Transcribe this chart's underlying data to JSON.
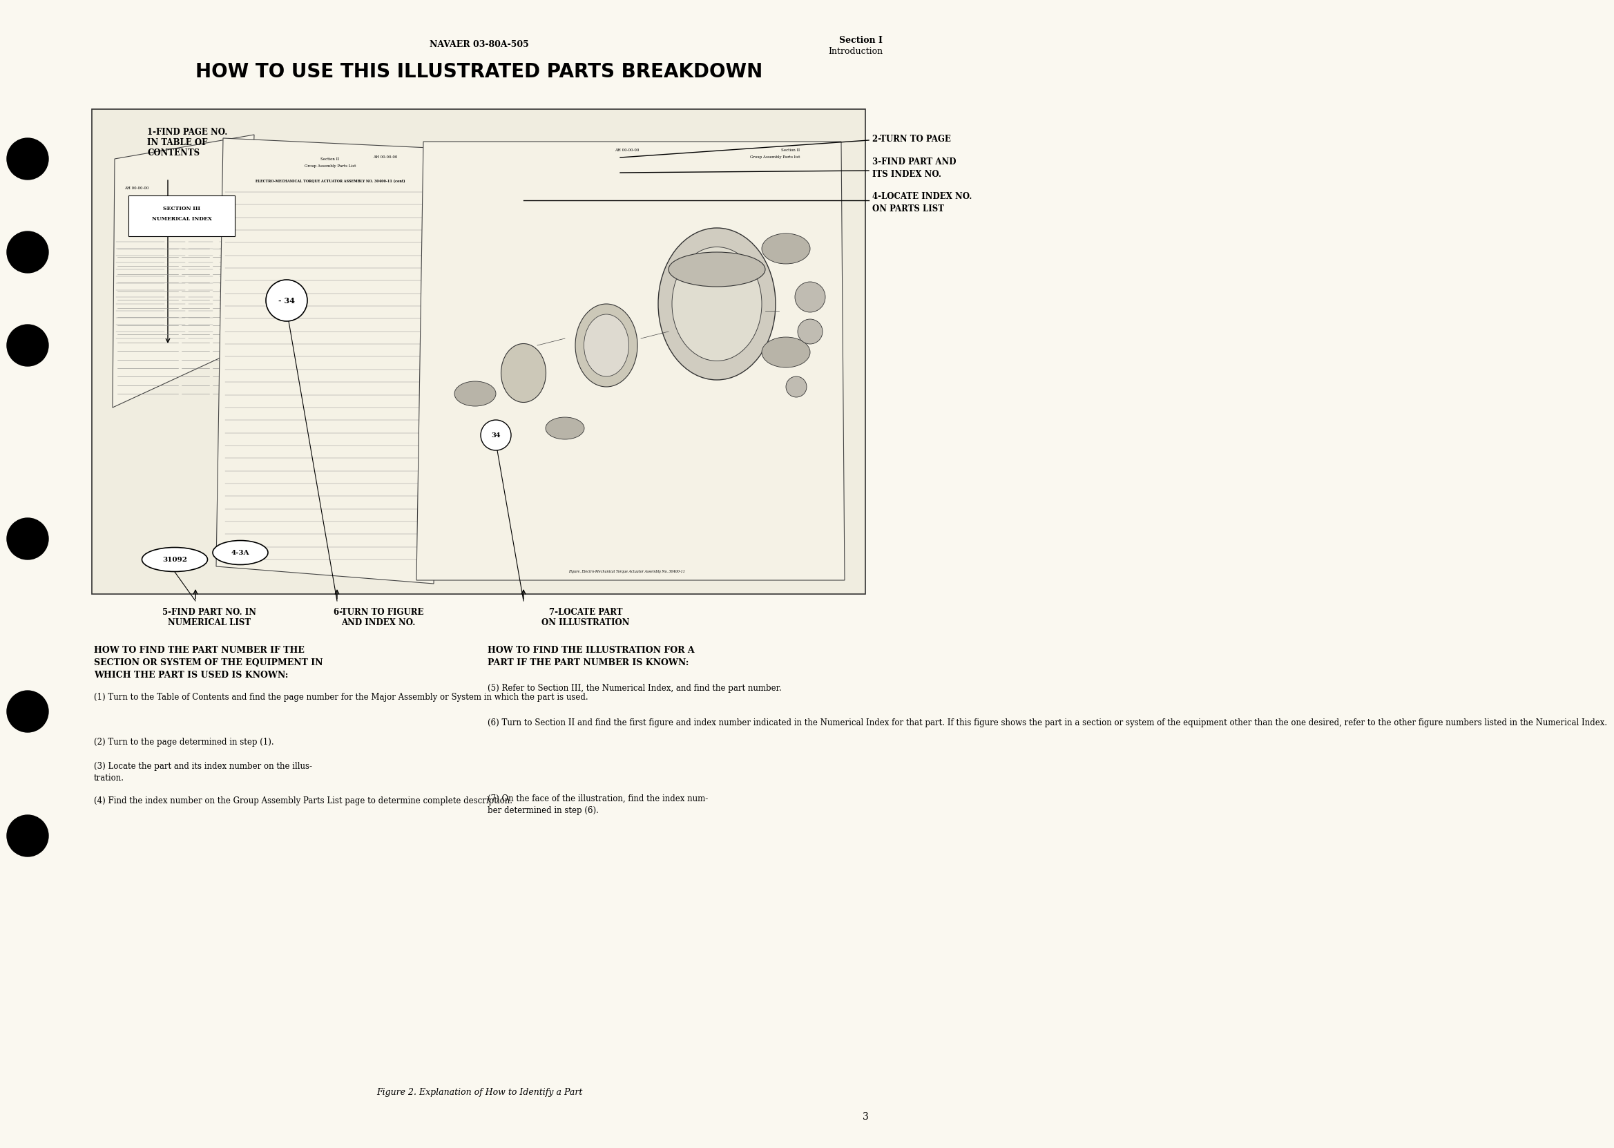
{
  "bg_color": "#f0ede0",
  "page_bg": "#faf8f0",
  "header_doc_num": "NAVAER 03-80A-505",
  "header_section": "Section I",
  "header_intro": "Introduction",
  "main_title": "HOW TO USE THIS ILLUSTRATED PARTS BREAKDOWN",
  "figure_caption": "Figure 2. Explanation of How to Identify a Part",
  "page_number": "3",
  "left_col_title": "HOW TO FIND THE PART NUMBER IF THE\nSECTION OR SYSTEM OF THE EQUIPMENT IN\nWHICH THE PART IS USED IS KNOWN:",
  "left_steps": [
    "(1) Turn to the Table of Contents and find the page number for the Major Assembly or System in which the part is used.",
    "(2) Turn to the page determined in step (1).",
    "(3) Locate the part and its index number on the illus-\ntration.",
    "(4) Find the index number on the Group Assembly Parts List page to determine complete description."
  ],
  "right_col_title": "HOW TO FIND THE ILLUSTRATION FOR A\nPART IF THE PART NUMBER IS KNOWN:",
  "right_steps": [
    "(5) Refer to Section III, the Numerical Index, and find the part number.",
    "(6) Turn to Section II and find the first figure and index number indicated in the Numerical Index for that part. If this figure shows the part in a section or system of the equipment other than the one desired, refer to the other figure numbers listed in the Numerical Index.",
    "(7) On the face of the illustration, find the index num-\nber determined in step (6)."
  ]
}
